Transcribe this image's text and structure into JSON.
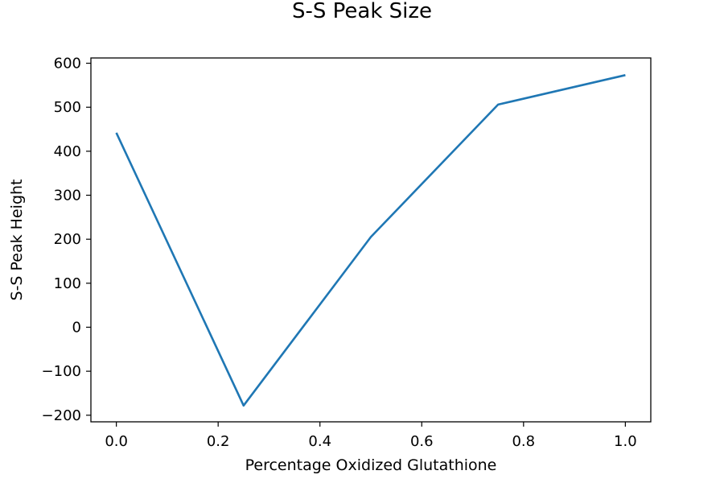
{
  "chart_data": {
    "type": "line",
    "title": "S-S Peak Size",
    "xlabel": "Percentage Oxidized Glutathione",
    "ylabel": "S-S Peak Height",
    "x": [
      0.0,
      0.25,
      0.5,
      0.75,
      1.0
    ],
    "series": [
      {
        "values": [
          442,
          -178,
          205,
          506,
          573
        ],
        "color": "#1f77b4"
      }
    ],
    "xlim": [
      -0.05,
      1.05
    ],
    "ylim": [
      -215,
      612
    ],
    "xticks": [
      0.0,
      0.2,
      0.4,
      0.6,
      0.8,
      1.0
    ],
    "xtick_labels": [
      "0.0",
      "0.2",
      "0.4",
      "0.6",
      "0.8",
      "1.0"
    ],
    "yticks": [
      -200,
      -100,
      0,
      100,
      200,
      300,
      400,
      500,
      600
    ],
    "ytick_labels": [
      "−200",
      "−100",
      "0",
      "100",
      "200",
      "300",
      "400",
      "500",
      "600"
    ],
    "grid": false,
    "legend": false
  }
}
